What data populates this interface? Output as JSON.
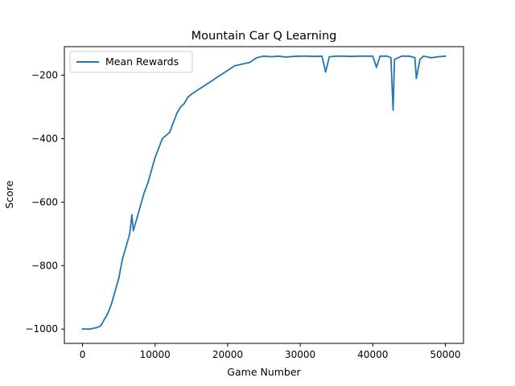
{
  "chart_data": {
    "type": "line",
    "title": "Mountain Car Q Learning",
    "xlabel": "Game Number",
    "ylabel": "Score",
    "xlim": [
      -2500,
      52500
    ],
    "ylim": [
      -1045,
      -110
    ],
    "xticks": [
      0,
      10000,
      20000,
      30000,
      40000,
      50000
    ],
    "xtick_labels": [
      "0",
      "10000",
      "20000",
      "30000",
      "40000",
      "50000"
    ],
    "yticks": [
      -1000,
      -800,
      -600,
      -400,
      -200
    ],
    "ytick_labels": [
      "−1000",
      "−800",
      "−600",
      "−400",
      "−200"
    ],
    "grid": false,
    "legend_position": "top-left",
    "series": [
      {
        "name": "Mean Rewards",
        "color": "#1f77b4",
        "x": [
          0,
          1000,
          2000,
          2500,
          3000,
          3500,
          4000,
          4500,
          5000,
          5500,
          6000,
          6500,
          6800,
          7000,
          7500,
          8000,
          8500,
          9000,
          9500,
          10000,
          10500,
          11000,
          11500,
          12000,
          12500,
          13000,
          13500,
          14000,
          14500,
          15000,
          16000,
          17000,
          18000,
          19000,
          20000,
          21000,
          22000,
          23000,
          24000,
          25000,
          26000,
          27000,
          28000,
          29000,
          30000,
          31000,
          32000,
          33000,
          33500,
          34000,
          35000,
          36000,
          37000,
          38000,
          39000,
          40000,
          40500,
          41000,
          42000,
          42500,
          42800,
          43000,
          44000,
          45000,
          45800,
          46000,
          46500,
          47000,
          48000,
          49000,
          50000
        ],
        "y": [
          -1000,
          -1000,
          -995,
          -990,
          -970,
          -950,
          -920,
          -880,
          -840,
          -780,
          -740,
          -700,
          -640,
          -690,
          -650,
          -610,
          -570,
          -540,
          -500,
          -460,
          -430,
          -400,
          -390,
          -380,
          -350,
          -320,
          -300,
          -290,
          -270,
          -260,
          -245,
          -230,
          -215,
          -200,
          -185,
          -170,
          -165,
          -160,
          -145,
          -140,
          -142,
          -140,
          -143,
          -141,
          -140,
          -140,
          -141,
          -140,
          -190,
          -142,
          -140,
          -140,
          -141,
          -140,
          -140,
          -140,
          -175,
          -140,
          -140,
          -145,
          -310,
          -150,
          -140,
          -140,
          -145,
          -210,
          -150,
          -140,
          -145,
          -142,
          -140
        ]
      }
    ]
  }
}
